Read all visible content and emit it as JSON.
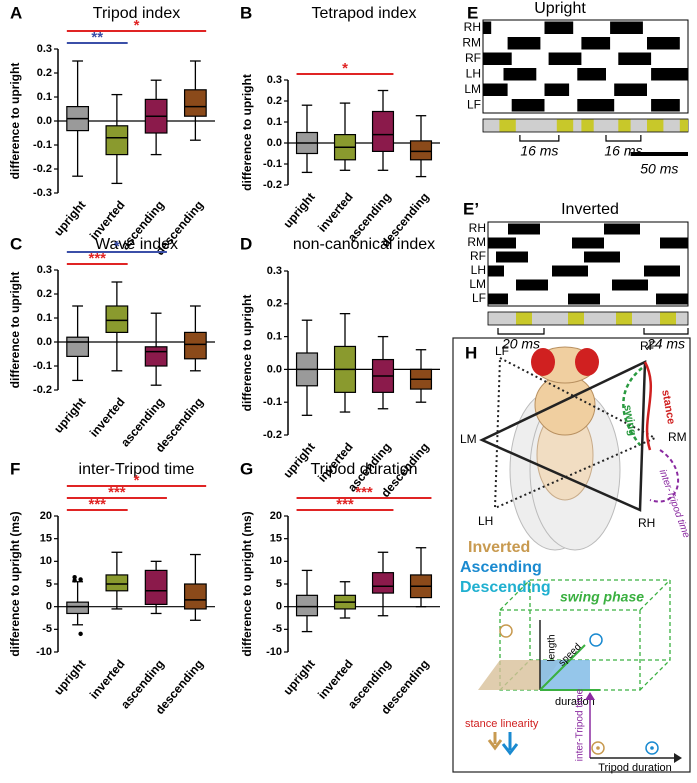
{
  "chart_data": [
    {
      "type": "box",
      "panel_label": "A",
      "title": "Tripod index",
      "y_label": "difference to upright",
      "categories": [
        "upright",
        "inverted",
        "ascending",
        "descending"
      ],
      "colors": [
        "#9a9a9a",
        "#8a9a2e",
        "#8b1a4b",
        "#8b4a1a"
      ],
      "boxes": [
        {
          "min": -0.23,
          "q1": -0.04,
          "median": 0.01,
          "q3": 0.06,
          "max": 0.25
        },
        {
          "min": -0.26,
          "q1": -0.14,
          "median": -0.07,
          "q3": -0.02,
          "max": 0.11
        },
        {
          "min": -0.14,
          "q1": -0.05,
          "median": 0.02,
          "q3": 0.09,
          "max": 0.17
        },
        {
          "min": -0.08,
          "q1": 0.02,
          "median": 0.06,
          "q3": 0.13,
          "max": 0.25
        }
      ],
      "ylim": [
        -0.3,
        0.3
      ],
      "yticks": [
        -0.3,
        -0.2,
        -0.1,
        {
          "value": 0,
          "label": "0.0"
        },
        0.1,
        0.2,
        0.3
      ],
      "significance": [
        {
          "pair": [
            0,
            1
          ],
          "label": "**",
          "color": "#3b4fa8"
        },
        {
          "pair": [
            0,
            3
          ],
          "label": "*",
          "color": "#e02424"
        }
      ]
    },
    {
      "type": "box",
      "panel_label": "B",
      "title": "Tetrapod index",
      "y_label": "difference to upright",
      "categories": [
        "upright",
        "inverted",
        "ascending",
        "descending"
      ],
      "colors": [
        "#9a9a9a",
        "#8a9a2e",
        "#8b1a4b",
        "#8b4a1a"
      ],
      "boxes": [
        {
          "min": -0.14,
          "q1": -0.05,
          "median": 0.0,
          "q3": 0.05,
          "max": 0.18
        },
        {
          "min": -0.13,
          "q1": -0.08,
          "median": -0.02,
          "q3": 0.04,
          "max": 0.19
        },
        {
          "min": -0.13,
          "q1": -0.04,
          "median": 0.04,
          "q3": 0.15,
          "max": 0.25
        },
        {
          "min": -0.16,
          "q1": -0.08,
          "median": -0.04,
          "q3": 0.01,
          "max": 0.13
        }
      ],
      "ylim": [
        -0.2,
        0.3
      ],
      "yticks": [
        -0.2,
        -0.1,
        {
          "value": 0,
          "label": "0.0"
        },
        0.1,
        0.2,
        0.3
      ],
      "significance": [
        {
          "pair": [
            0,
            2
          ],
          "label": "*",
          "color": "#e02424"
        }
      ]
    },
    {
      "type": "box",
      "panel_label": "C",
      "title": "Wave index",
      "y_label": "difference to upright",
      "categories": [
        "upright",
        "inverted",
        "ascending",
        "descending"
      ],
      "colors": [
        "#9a9a9a",
        "#8a9a2e",
        "#8b1a4b",
        "#8b4a1a"
      ],
      "boxes": [
        {
          "min": -0.16,
          "q1": -0.06,
          "median": 0.0,
          "q3": 0.02,
          "max": 0.15
        },
        {
          "min": -0.12,
          "q1": 0.04,
          "median": 0.09,
          "q3": 0.15,
          "max": 0.25
        },
        {
          "min": -0.18,
          "q1": -0.1,
          "median": -0.04,
          "q3": -0.02,
          "max": 0.12
        },
        {
          "min": -0.12,
          "q1": -0.07,
          "median": -0.01,
          "q3": 0.04,
          "max": 0.15
        }
      ],
      "ylim": [
        -0.2,
        0.3
      ],
      "yticks": [
        -0.2,
        -0.1,
        {
          "value": 0,
          "label": "0.0"
        },
        0.1,
        0.2,
        0.3
      ],
      "significance": [
        {
          "pair": [
            0,
            1
          ],
          "label": "***",
          "color": "#e02424"
        },
        {
          "pair": [
            0,
            2
          ],
          "label": "*",
          "color": "#3b4fa8"
        }
      ]
    },
    {
      "type": "box",
      "panel_label": "D",
      "title": "non-canonical index",
      "y_label": "difference to upright",
      "categories": [
        "upright",
        "inverted",
        "ascending",
        "descending"
      ],
      "colors": [
        "#9a9a9a",
        "#8a9a2e",
        "#8b1a4b",
        "#8b4a1a"
      ],
      "boxes": [
        {
          "min": -0.14,
          "q1": -0.05,
          "median": 0.0,
          "q3": 0.05,
          "max": 0.15
        },
        {
          "min": -0.13,
          "q1": -0.07,
          "median": 0.0,
          "q3": 0.07,
          "max": 0.17
        },
        {
          "min": -0.12,
          "q1": -0.07,
          "median": -0.02,
          "q3": 0.03,
          "max": 0.1
        },
        {
          "min": -0.1,
          "q1": -0.06,
          "median": -0.03,
          "q3": 0.0,
          "max": 0.06
        }
      ],
      "ylim": [
        -0.2,
        0.3
      ],
      "yticks": [
        -0.2,
        -0.1,
        {
          "value": 0,
          "label": "0.0"
        },
        0.1,
        0.2,
        0.3
      ],
      "significance": []
    },
    {
      "type": "box",
      "panel_label": "F",
      "title": "inter-Tripod time",
      "y_label": "difference to upright (ms)",
      "categories": [
        "upright",
        "inverted",
        "ascending",
        "descending"
      ],
      "colors": [
        "#9a9a9a",
        "#8a9a2e",
        "#8b1a4b",
        "#8b4a1a"
      ],
      "boxes": [
        {
          "min": -4,
          "q1": -1.5,
          "median": 0,
          "q3": 1,
          "max": 5.5
        },
        {
          "min": -0.5,
          "q1": 3.5,
          "median": 5,
          "q3": 7,
          "max": 12
        },
        {
          "min": -1.5,
          "q1": 0.5,
          "median": 3.5,
          "q3": 8,
          "max": 10
        },
        {
          "min": -3,
          "q1": -0.5,
          "median": 1.5,
          "q3": 5,
          "max": 11.5
        }
      ],
      "outliers": [
        [
          6.5,
          6,
          5.8,
          -6
        ],
        [],
        [],
        []
      ],
      "ylim": [
        -10,
        20
      ],
      "yticks": [
        -10,
        -5,
        0,
        5,
        10,
        15,
        20
      ],
      "significance": [
        {
          "pair": [
            0,
            1
          ],
          "label": "***",
          "color": "#e02424"
        },
        {
          "pair": [
            0,
            2
          ],
          "label": "***",
          "color": "#e02424"
        },
        {
          "pair": [
            0,
            3
          ],
          "label": "*",
          "color": "#e02424"
        }
      ]
    },
    {
      "type": "box",
      "panel_label": "G",
      "title": "Tripod duration",
      "y_label": "difference to upright (ms)",
      "categories": [
        "upright",
        "inverted",
        "ascending",
        "descending"
      ],
      "colors": [
        "#9a9a9a",
        "#8a9a2e",
        "#8b1a4b",
        "#8b4a1a"
      ],
      "boxes": [
        {
          "min": -5.5,
          "q1": -2,
          "median": 0,
          "q3": 2.5,
          "max": 8
        },
        {
          "min": -2.5,
          "q1": -0.5,
          "median": 1,
          "q3": 2.5,
          "max": 5.5
        },
        {
          "min": -2,
          "q1": 3,
          "median": 4.5,
          "q3": 7.5,
          "max": 12
        },
        {
          "min": 0,
          "q1": 2,
          "median": 4.5,
          "q3": 7,
          "max": 13
        }
      ],
      "ylim": [
        -10,
        20
      ],
      "yticks": [
        -10,
        -5,
        0,
        5,
        10,
        15,
        20
      ],
      "significance": [
        {
          "pair": [
            0,
            2
          ],
          "label": "***",
          "color": "#e02424"
        },
        {
          "pair": [
            0,
            3
          ],
          "label": "***",
          "color": "#e02424"
        }
      ]
    },
    {
      "type": "gait",
      "panel_label": "E",
      "title": "Upright",
      "xlim": [
        0,
        100
      ],
      "legs": [
        {
          "name": "RH",
          "stance": [
            [
              0,
              4
            ],
            [
              30,
              44
            ],
            [
              62,
              78
            ]
          ]
        },
        {
          "name": "RM",
          "stance": [
            [
              12,
              28
            ],
            [
              48,
              62
            ],
            [
              80,
              96
            ]
          ]
        },
        {
          "name": "RF",
          "stance": [
            [
              0,
              14
            ],
            [
              32,
              48
            ],
            [
              66,
              82
            ]
          ]
        },
        {
          "name": "LH",
          "stance": [
            [
              10,
              26
            ],
            [
              46,
              60
            ],
            [
              82,
              100
            ]
          ]
        },
        {
          "name": "LM",
          "stance": [
            [
              0,
              12
            ],
            [
              30,
              42
            ],
            [
              64,
              80
            ]
          ]
        },
        {
          "name": "LF",
          "stance": [
            [
              14,
              30
            ],
            [
              46,
              64
            ],
            [
              82,
              96
            ]
          ]
        }
      ],
      "strip": [
        [
          8,
          16
        ],
        [
          36,
          44
        ],
        [
          48,
          54
        ],
        [
          66,
          72
        ],
        [
          80,
          88
        ],
        [
          96,
          100
        ]
      ],
      "intervals": [
        {
          "range": [
            18,
            37
          ],
          "label": "16 ms"
        },
        {
          "range": [
            60,
            77
          ],
          "label": "16 ms"
        }
      ],
      "scale_bar": {
        "range": [
          72,
          100
        ],
        "label": "50 ms"
      }
    },
    {
      "type": "gait",
      "panel_label": "E’",
      "title": "Inverted",
      "xlim": [
        0,
        100
      ],
      "legs": [
        {
          "name": "RH",
          "stance": [
            [
              10,
              26
            ],
            [
              58,
              76
            ]
          ]
        },
        {
          "name": "RM",
          "stance": [
            [
              0,
              14
            ],
            [
              42,
              58
            ],
            [
              86,
              100
            ]
          ]
        },
        {
          "name": "RF",
          "stance": [
            [
              4,
              20
            ],
            [
              48,
              66
            ]
          ]
        },
        {
          "name": "LH",
          "stance": [
            [
              0,
              8
            ],
            [
              32,
              50
            ],
            [
              78,
              96
            ]
          ]
        },
        {
          "name": "LM",
          "stance": [
            [
              14,
              30
            ],
            [
              62,
              80
            ]
          ]
        },
        {
          "name": "LF",
          "stance": [
            [
              0,
              10
            ],
            [
              40,
              56
            ],
            [
              84,
              100
            ]
          ]
        }
      ],
      "strip": [
        [
          14,
          22
        ],
        [
          40,
          48
        ],
        [
          64,
          72
        ],
        [
          86,
          94
        ]
      ],
      "intervals": [
        {
          "range": [
            5,
            28
          ],
          "label": "20 ms"
        },
        {
          "range": [
            78,
            100
          ],
          "label": "24 ms"
        }
      ]
    }
  ],
  "diagram": {
    "panel_label": "H",
    "leg_labels": [
      "LF",
      "RF",
      "LM",
      "RM",
      "LH",
      "RH"
    ],
    "swing": "swing",
    "stance": "stance",
    "inter_tripod": "inter-Tripod time",
    "conditions": [
      "Inverted",
      "Ascending",
      "Descending"
    ],
    "swing_phase": "swing phase",
    "axes": [
      "length",
      "speed",
      "duration"
    ],
    "stance_linearity": "stance linearity",
    "plot_y": "inter-Tripod time",
    "plot_x": "Tripod duration"
  }
}
